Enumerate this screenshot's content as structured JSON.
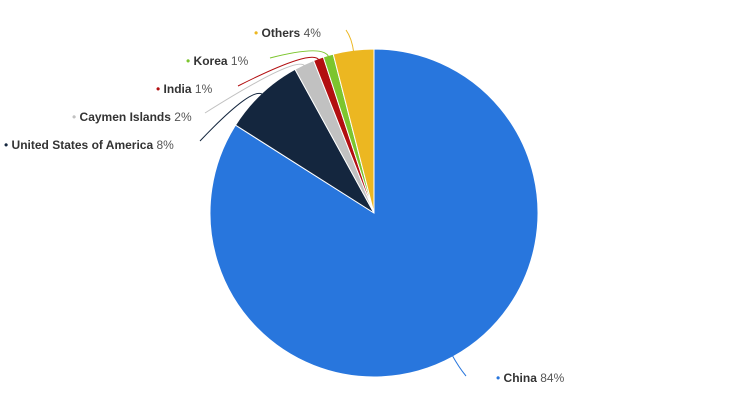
{
  "chart_data": {
    "type": "pie",
    "categories": [
      "China",
      "United States of America",
      "Caymen Islands",
      "India",
      "Korea",
      "Others"
    ],
    "values": [
      84,
      8,
      2,
      1,
      1,
      4
    ],
    "value_labels": [
      "84%",
      "8%",
      "2%",
      "1%",
      "1%",
      "4%"
    ],
    "colors": [
      "#2876dd",
      "#14263e",
      "#c1c1c1",
      "#b20e10",
      "#7cc52e",
      "#ecb721"
    ]
  }
}
